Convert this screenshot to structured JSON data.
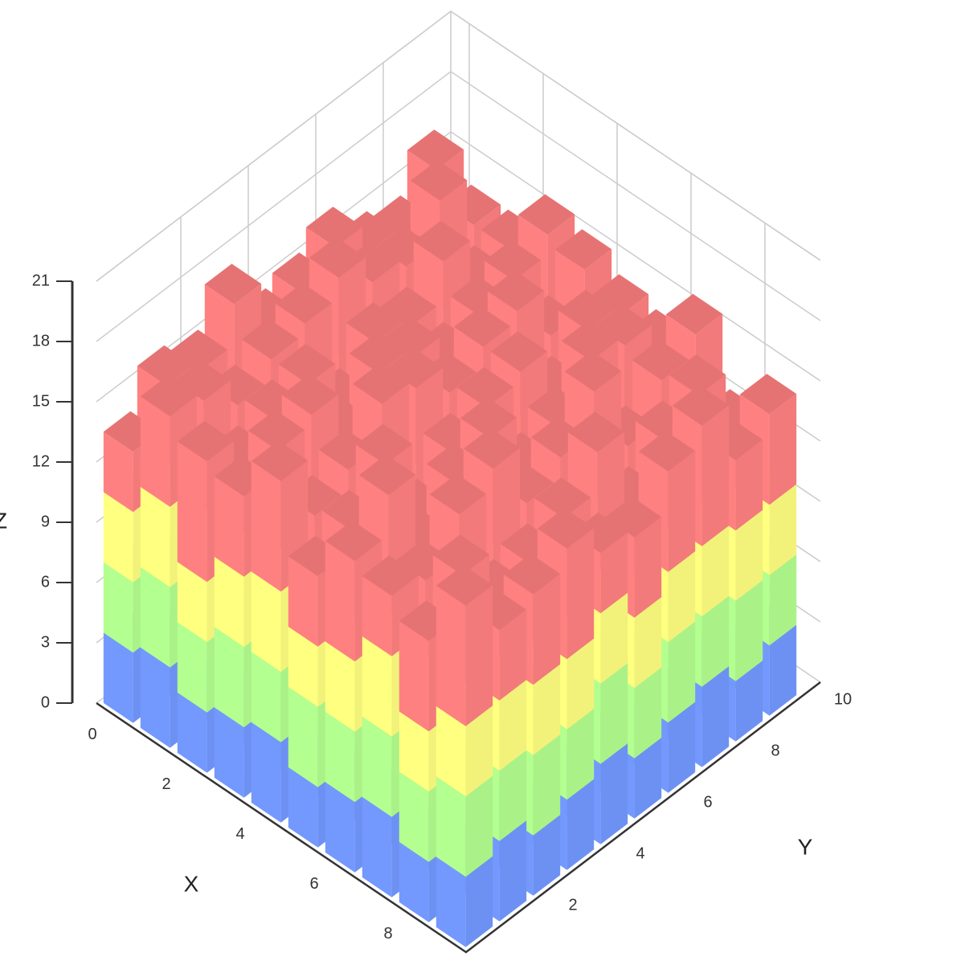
{
  "chart_data": {
    "type": "bar3d",
    "xlabel": "X",
    "ylabel": "Y",
    "zlabel": "Z",
    "x": [
      0,
      1,
      2,
      3,
      4,
      5,
      6,
      7,
      8,
      9
    ],
    "y": [
      0,
      1,
      2,
      3,
      4,
      5,
      6,
      7,
      8,
      9
    ],
    "series": [
      {
        "color": "#7399ff",
        "values": [
          [
            3.5,
            4,
            3,
            3.5,
            4,
            3,
            3.5,
            4,
            3,
            3.5
          ],
          [
            4,
            3,
            3.5,
            4,
            3,
            3.5,
            4,
            3,
            3.5,
            4
          ],
          [
            3,
            3.5,
            4,
            3,
            3.5,
            4,
            3,
            3.5,
            4,
            3
          ],
          [
            3.5,
            4,
            3,
            3.5,
            4,
            3,
            3.5,
            4,
            3,
            3.5
          ],
          [
            4,
            3,
            3.5,
            4,
            3,
            3.5,
            4,
            3,
            3.5,
            4
          ],
          [
            3,
            3.5,
            4,
            3,
            3.5,
            4,
            3,
            3.5,
            4,
            3
          ],
          [
            3.5,
            4,
            3,
            3.5,
            4,
            3,
            3.5,
            4,
            3,
            3.5
          ],
          [
            4,
            3,
            3.5,
            4,
            3,
            3.5,
            4,
            3,
            3.5,
            4
          ],
          [
            3,
            3.5,
            4,
            3,
            3.5,
            4,
            3,
            3.5,
            4,
            3
          ],
          [
            3.5,
            4,
            3,
            3.5,
            4,
            3,
            3.5,
            4,
            3,
            3.5
          ]
        ]
      },
      {
        "color": "#b3ff8f",
        "values": [
          [
            3.5,
            4,
            3.5,
            4,
            3.5,
            4,
            3.5,
            4,
            3.5,
            4
          ],
          [
            4,
            3.5,
            4,
            3.5,
            4,
            3.5,
            4,
            3.5,
            4,
            3.5
          ],
          [
            3.5,
            4,
            3.5,
            4,
            3.5,
            4,
            3.5,
            4,
            3.5,
            4
          ],
          [
            4,
            3.5,
            4,
            3.5,
            4,
            3.5,
            4,
            3.5,
            4,
            3.5
          ],
          [
            3.5,
            4,
            3.5,
            4,
            3.5,
            4,
            3.5,
            4,
            3.5,
            4
          ],
          [
            4,
            3.5,
            4,
            3.5,
            4,
            3.5,
            4,
            3.5,
            4,
            3.5
          ],
          [
            3.5,
            4,
            3.5,
            4,
            3.5,
            4,
            3.5,
            4,
            3.5,
            4
          ],
          [
            4,
            3.5,
            4,
            3.5,
            4,
            3.5,
            4,
            3.5,
            4,
            3.5
          ],
          [
            3.5,
            4,
            3.5,
            4,
            3.5,
            4,
            3.5,
            4,
            3.5,
            4
          ],
          [
            4,
            3.5,
            4,
            3.5,
            4,
            3.5,
            4,
            3.5,
            4,
            3.5
          ]
        ]
      },
      {
        "color": "#ffff80",
        "values": [
          [
            3.5,
            3.5,
            3.5,
            3.5,
            3.5,
            3.5,
            3.5,
            3.5,
            3.5,
            3.5
          ],
          [
            4,
            4,
            4,
            4,
            4,
            4,
            4,
            4,
            4,
            4
          ],
          [
            3,
            3,
            3,
            3,
            3,
            3,
            3,
            3,
            3,
            3
          ],
          [
            3.5,
            3.5,
            3.5,
            3.5,
            3.5,
            3.5,
            3.5,
            3.5,
            3.5,
            3.5
          ],
          [
            4,
            4,
            4,
            4,
            4,
            4,
            4,
            4,
            4,
            4
          ],
          [
            3,
            3,
            3,
            3,
            3,
            3,
            3,
            3,
            3,
            3
          ],
          [
            3.5,
            3.5,
            3.5,
            3.5,
            3.5,
            3.5,
            3.5,
            3.5,
            3.5,
            3.5
          ],
          [
            4,
            4,
            4,
            4,
            4,
            4,
            4,
            4,
            4,
            4
          ],
          [
            3,
            3,
            3,
            3,
            3,
            3,
            3,
            3,
            3,
            3
          ],
          [
            3.5,
            3.5,
            3.5,
            3.5,
            3.5,
            3.5,
            3.5,
            3.5,
            3.5,
            3.5
          ]
        ]
      },
      {
        "color": "#ff8080",
        "values": [
          [
            3,
            4,
            5,
            6,
            3.5,
            4.5,
            5.5,
            3,
            4,
            5
          ],
          [
            4.5,
            5.5,
            3,
            4,
            5,
            6,
            3.5,
            4.5,
            5.5,
            3
          ],
          [
            6,
            3.5,
            4.5,
            5.5,
            3,
            4,
            5,
            6,
            3.5,
            4.5
          ],
          [
            4,
            5,
            6,
            3.5,
            4.5,
            5.5,
            3,
            4,
            5,
            6
          ],
          [
            5.5,
            3,
            4,
            5,
            6,
            3.5,
            4.5,
            5.5,
            3,
            4
          ],
          [
            3.5,
            4.5,
            5.5,
            3,
            4,
            5,
            6,
            3.5,
            4.5,
            5.5
          ],
          [
            5,
            6,
            3.5,
            4.5,
            5.5,
            3,
            4,
            5,
            6,
            3.5
          ],
          [
            3,
            4,
            5,
            6,
            3.5,
            4.5,
            5.5,
            3,
            4,
            5
          ],
          [
            4.5,
            5.5,
            3,
            4,
            5,
            6,
            3.5,
            4.5,
            5.5,
            3
          ],
          [
            6,
            3.5,
            4.5,
            5.5,
            3,
            4,
            5,
            6,
            3.5,
            4.5
          ]
        ]
      }
    ],
    "xlim": [
      -0.5,
      9.5
    ],
    "ylim": [
      -0.5,
      10
    ],
    "zlim": [
      0,
      21
    ],
    "xticks": [
      0,
      2,
      4,
      6,
      8
    ],
    "yticks": [
      2,
      4,
      6,
      8,
      10
    ],
    "zticks": [
      0,
      3,
      6,
      9,
      12,
      15,
      18,
      21
    ],
    "grid": true
  }
}
